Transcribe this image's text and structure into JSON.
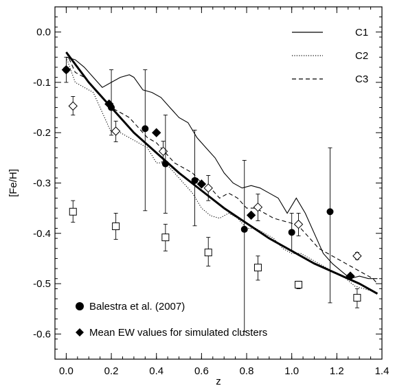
{
  "chart_data": {
    "type": "line",
    "xlabel": "z",
    "ylabel": "[Fe/H]",
    "xlim": [
      -0.05,
      1.4
    ],
    "ylim": [
      -0.65,
      0.05
    ],
    "x_ticks": [
      0.0,
      0.2,
      0.4,
      0.6,
      0.8,
      1.0,
      1.2,
      1.4
    ],
    "x_tick_labels": [
      "0.0",
      "0.2",
      "0.4",
      "0.6",
      "0.8",
      "1.0",
      "1.2",
      "1.4"
    ],
    "y_ticks": [
      0.0,
      -0.1,
      -0.2,
      -0.3,
      -0.4,
      -0.5,
      -0.6
    ],
    "y_tick_labels": [
      "0.0",
      "-0.1",
      "-0.2",
      "-0.3",
      "-0.4",
      "-0.5",
      "-0.6"
    ],
    "legend_lines": [
      {
        "label": "C1",
        "style": "solid"
      },
      {
        "label": "C2",
        "style": "dotted"
      },
      {
        "label": "C3",
        "style": "dashed"
      }
    ],
    "legend_markers": [
      {
        "label": "Balestra et al. (2007)",
        "marker": "filled-circle"
      },
      {
        "label": "Mean EW values for simulated clusters",
        "marker": "filled-diamond"
      }
    ],
    "series": [
      {
        "name": "C1",
        "style": "solid",
        "x": [
          0.0,
          0.04,
          0.08,
          0.12,
          0.16,
          0.2,
          0.24,
          0.28,
          0.3,
          0.34,
          0.38,
          0.42,
          0.46,
          0.5,
          0.54,
          0.58,
          0.62,
          0.66,
          0.7,
          0.74,
          0.78,
          0.82,
          0.86,
          0.9,
          0.94,
          0.98,
          1.02,
          1.06,
          1.1,
          1.14,
          1.18,
          1.22,
          1.26,
          1.3,
          1.34,
          1.38
        ],
        "y": [
          -0.05,
          -0.055,
          -0.07,
          -0.09,
          -0.11,
          -0.1,
          -0.09,
          -0.085,
          -0.09,
          -0.115,
          -0.12,
          -0.13,
          -0.15,
          -0.17,
          -0.18,
          -0.21,
          -0.23,
          -0.25,
          -0.28,
          -0.3,
          -0.31,
          -0.305,
          -0.31,
          -0.32,
          -0.33,
          -0.36,
          -0.33,
          -0.36,
          -0.4,
          -0.44,
          -0.46,
          -0.475,
          -0.49,
          -0.485,
          -0.49,
          -0.49
        ]
      },
      {
        "name": "C2",
        "style": "dotted",
        "x": [
          0.0,
          0.04,
          0.08,
          0.12,
          0.16,
          0.2,
          0.24,
          0.28,
          0.32,
          0.36,
          0.4,
          0.44,
          0.48,
          0.52,
          0.56,
          0.6,
          0.64,
          0.68,
          0.72,
          0.76,
          0.8,
          0.84,
          0.88,
          0.92,
          0.96,
          1.0,
          1.04,
          1.08,
          1.12,
          1.16,
          1.2,
          1.24,
          1.28,
          1.32,
          1.36,
          1.38
        ],
        "y": [
          -0.05,
          -0.1,
          -0.11,
          -0.12,
          -0.16,
          -0.2,
          -0.2,
          -0.21,
          -0.22,
          -0.23,
          -0.26,
          -0.26,
          -0.28,
          -0.3,
          -0.32,
          -0.35,
          -0.365,
          -0.37,
          -0.36,
          -0.37,
          -0.39,
          -0.39,
          -0.4,
          -0.41,
          -0.43,
          -0.44,
          -0.44,
          -0.45,
          -0.46,
          -0.47,
          -0.48,
          -0.49,
          -0.505,
          -0.51,
          -0.515,
          -0.52
        ]
      },
      {
        "name": "C3",
        "style": "dashed",
        "x": [
          0.0,
          0.04,
          0.08,
          0.12,
          0.16,
          0.2,
          0.24,
          0.28,
          0.32,
          0.36,
          0.4,
          0.44,
          0.48,
          0.52,
          0.56,
          0.6,
          0.64,
          0.68,
          0.72,
          0.76,
          0.8,
          0.84,
          0.88,
          0.92,
          0.96,
          1.0,
          1.04,
          1.08,
          1.12,
          1.16,
          1.2,
          1.24,
          1.28,
          1.32,
          1.36,
          1.38
        ],
        "y": [
          -0.04,
          -0.08,
          -0.09,
          -0.11,
          -0.13,
          -0.15,
          -0.16,
          -0.17,
          -0.19,
          -0.21,
          -0.22,
          -0.24,
          -0.26,
          -0.27,
          -0.28,
          -0.3,
          -0.31,
          -0.33,
          -0.32,
          -0.33,
          -0.35,
          -0.35,
          -0.36,
          -0.37,
          -0.375,
          -0.38,
          -0.39,
          -0.41,
          -0.43,
          -0.44,
          -0.45,
          -0.46,
          -0.47,
          -0.48,
          -0.49,
          -0.5
        ]
      },
      {
        "name": "fit",
        "style": "thick",
        "x": [
          0.0,
          0.1,
          0.2,
          0.3,
          0.4,
          0.5,
          0.6,
          0.7,
          0.8,
          0.9,
          1.0,
          1.1,
          1.2,
          1.3,
          1.38
        ],
        "y": [
          -0.04,
          -0.1,
          -0.15,
          -0.2,
          -0.24,
          -0.28,
          -0.315,
          -0.35,
          -0.38,
          -0.41,
          -0.435,
          -0.46,
          -0.48,
          -0.5,
          -0.52
        ]
      }
    ],
    "balestra": [
      {
        "x": 0.0,
        "y": -0.075,
        "lo": -0.1,
        "hi": -0.05
      },
      {
        "x": 0.2,
        "y": -0.15,
        "lo": -0.205,
        "hi": -0.075
      },
      {
        "x": 0.35,
        "y": -0.192,
        "lo": -0.355,
        "hi": -0.075
      },
      {
        "x": 0.44,
        "y": -0.262,
        "lo": -0.36,
        "hi": -0.165
      },
      {
        "x": 0.57,
        "y": -0.295,
        "lo": -0.385,
        "hi": -0.195
      },
      {
        "x": 0.79,
        "y": -0.392,
        "lo": -0.595,
        "hi": -0.255
      },
      {
        "x": 1.0,
        "y": -0.398,
        "lo": -0.435,
        "hi": -0.36
      },
      {
        "x": 1.17,
        "y": -0.357,
        "lo": -0.538,
        "hi": -0.23
      }
    ],
    "sim_filled": [
      {
        "x": 0.0,
        "y": -0.075
      },
      {
        "x": 0.19,
        "y": -0.143
      },
      {
        "x": 0.4,
        "y": -0.2
      },
      {
        "x": 0.6,
        "y": -0.302
      },
      {
        "x": 0.82,
        "y": -0.364
      },
      {
        "x": 1.26,
        "y": -0.485
      }
    ],
    "sim_open_diamonds": [
      {
        "x": 0.03,
        "y": -0.147,
        "lo": -0.165,
        "hi": -0.128
      },
      {
        "x": 0.22,
        "y": -0.197,
        "lo": -0.218,
        "hi": -0.177
      },
      {
        "x": 0.43,
        "y": -0.237,
        "lo": -0.258,
        "hi": -0.217
      },
      {
        "x": 0.63,
        "y": -0.31,
        "lo": -0.335,
        "hi": -0.285
      },
      {
        "x": 0.85,
        "y": -0.348,
        "lo": -0.375,
        "hi": -0.322
      },
      {
        "x": 1.03,
        "y": -0.382,
        "lo": -0.405,
        "hi": -0.36
      },
      {
        "x": 1.29,
        "y": -0.445,
        "lo": -0.452,
        "hi": -0.438
      }
    ],
    "sim_open_squares": [
      {
        "x": 0.03,
        "y": -0.357,
        "lo": -0.378,
        "hi": -0.335
      },
      {
        "x": 0.22,
        "y": -0.386,
        "lo": -0.412,
        "hi": -0.36
      },
      {
        "x": 0.44,
        "y": -0.408,
        "lo": -0.435,
        "hi": -0.382
      },
      {
        "x": 0.63,
        "y": -0.438,
        "lo": -0.465,
        "hi": -0.408
      },
      {
        "x": 0.85,
        "y": -0.468,
        "lo": -0.493,
        "hi": -0.445
      },
      {
        "x": 1.03,
        "y": -0.502,
        "lo": -0.51,
        "hi": -0.495
      },
      {
        "x": 1.29,
        "y": -0.528,
        "lo": -0.548,
        "hi": -0.51
      }
    ]
  }
}
